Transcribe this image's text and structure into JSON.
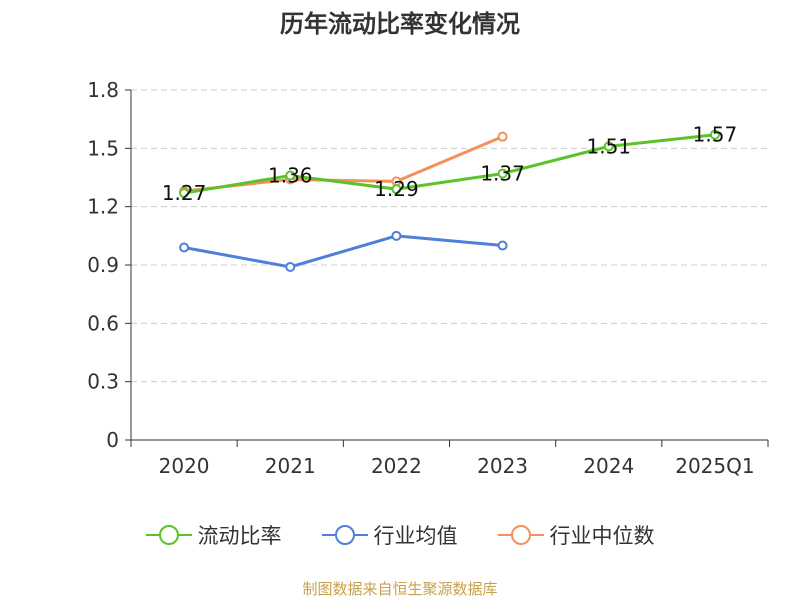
{
  "chart_data": {
    "type": "line",
    "title": "历年流动比率变化情况",
    "categories": [
      "2020",
      "2021",
      "2022",
      "2023",
      "2024",
      "2025Q1"
    ],
    "ylim": [
      0,
      1.8
    ],
    "yticks": [
      0,
      0.3,
      0.6,
      0.9,
      1.2,
      1.5,
      1.8
    ],
    "ytick_labels": [
      "0",
      "0.3",
      "0.6",
      "0.9",
      "1.2",
      "1.5",
      "1.8"
    ],
    "grid": true,
    "legend_position": "bottom",
    "series": [
      {
        "name": "流动比率",
        "color": "#5cc22a",
        "values": [
          1.27,
          1.36,
          1.29,
          1.37,
          1.51,
          1.57
        ],
        "data_labels": [
          "1.27",
          "1.36",
          "1.29",
          "1.37",
          "1.51",
          "1.57"
        ]
      },
      {
        "name": "行业均值",
        "color": "#4f7fd9",
        "values": [
          0.99,
          0.89,
          1.05,
          1.0,
          null,
          null
        ]
      },
      {
        "name": "行业中位数",
        "color": "#f5905a",
        "values": [
          1.28,
          1.34,
          1.33,
          1.56,
          null,
          null
        ]
      }
    ]
  },
  "source_text": "制图数据来自恒生聚源数据库"
}
